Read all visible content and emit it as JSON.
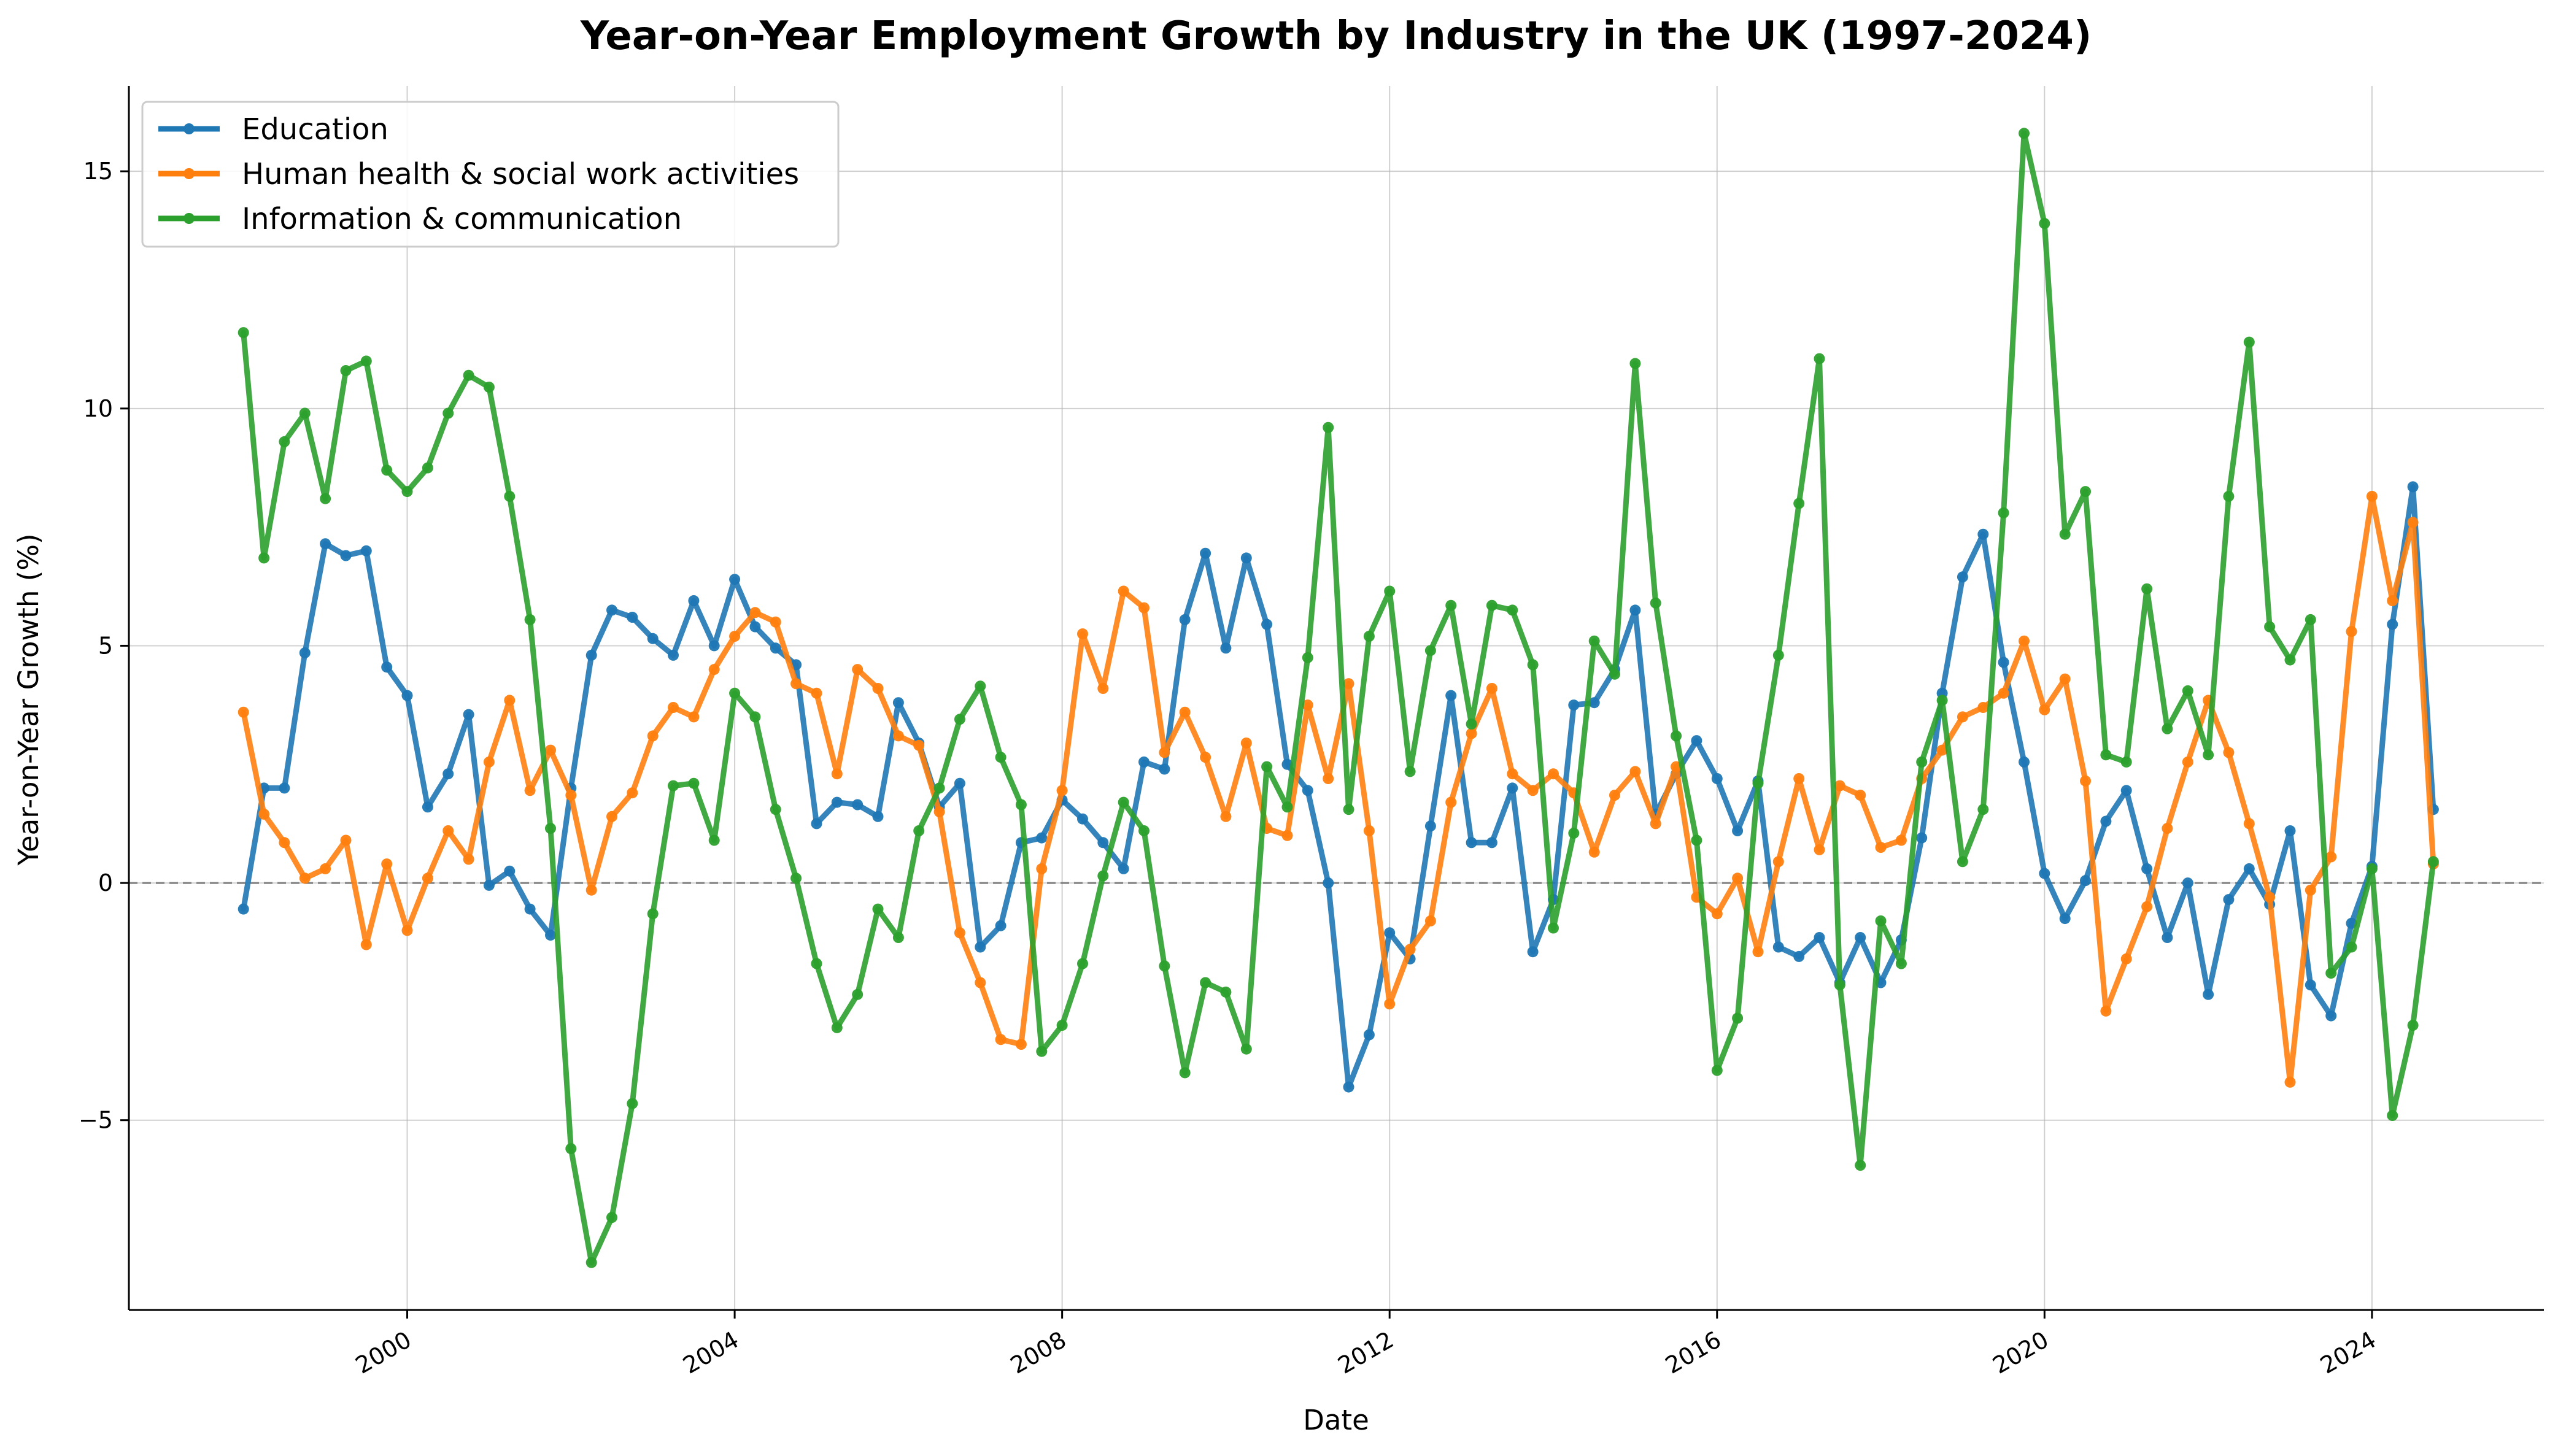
{
  "chart_data": {
    "type": "line",
    "title": "Year-on-Year Employment Growth by Industry in the UK (1997-2024)",
    "xlabel": "Date",
    "ylabel": "Year-on-Year Growth (%)",
    "xlim": [
      1996.6,
      2026.1
    ],
    "ylim": [
      -9,
      16.8
    ],
    "xticks": [
      2000,
      2004,
      2008,
      2012,
      2016,
      2020,
      2024
    ],
    "xtick_labels": [
      "2000",
      "2004",
      "2008",
      "2012",
      "2016",
      "2020",
      "2024"
    ],
    "yticks": [
      -5,
      0,
      5,
      10,
      15
    ],
    "ytick_labels": [
      "−5",
      "0",
      "5",
      "10",
      "15"
    ],
    "grid": true,
    "reference_line": 0,
    "legend_position": "top-left",
    "x": [
      1998.0,
      1998.25,
      1998.5,
      1998.75,
      1999.0,
      1999.25,
      1999.5,
      1999.75,
      2000.0,
      2000.25,
      2000.5,
      2000.75,
      2001.0,
      2001.25,
      2001.5,
      2001.75,
      2002.0,
      2002.25,
      2002.5,
      2002.75,
      2003.0,
      2003.25,
      2003.5,
      2003.75,
      2004.0,
      2004.25,
      2004.5,
      2004.75,
      2005.0,
      2005.25,
      2005.5,
      2005.75,
      2006.0,
      2006.25,
      2006.5,
      2006.75,
      2007.0,
      2007.25,
      2007.5,
      2007.75,
      2008.0,
      2008.25,
      2008.5,
      2008.75,
      2009.0,
      2009.25,
      2009.5,
      2009.75,
      2010.0,
      2010.25,
      2010.5,
      2010.75,
      2011.0,
      2011.25,
      2011.5,
      2011.75,
      2012.0,
      2012.25,
      2012.5,
      2012.75,
      2013.0,
      2013.25,
      2013.5,
      2013.75,
      2014.0,
      2014.25,
      2014.5,
      2014.75,
      2015.0,
      2015.25,
      2015.5,
      2015.75,
      2016.0,
      2016.25,
      2016.5,
      2016.75,
      2017.0,
      2017.25,
      2017.5,
      2017.75,
      2018.0,
      2018.25,
      2018.5,
      2018.75,
      2019.0,
      2019.25,
      2019.5,
      2019.75,
      2020.0,
      2020.25,
      2020.5,
      2020.75,
      2021.0,
      2021.25,
      2021.5,
      2021.75,
      2022.0,
      2022.25,
      2022.5,
      2022.75,
      2023.0,
      2023.25,
      2023.5,
      2023.75,
      2024.0,
      2024.25,
      2024.5,
      2024.75
    ],
    "series": [
      {
        "name": "Education",
        "color": "#1f77b4",
        "values": [
          -0.55,
          2.0,
          2.0,
          4.85,
          7.15,
          6.9,
          7.0,
          4.55,
          3.95,
          1.6,
          2.3,
          3.55,
          -0.05,
          0.25,
          -0.55,
          -1.1,
          2.0,
          4.8,
          5.75,
          5.6,
          5.15,
          4.8,
          5.95,
          5.0,
          6.4,
          5.4,
          4.95,
          4.6,
          1.25,
          1.7,
          1.65,
          1.4,
          3.8,
          2.95,
          1.6,
          2.1,
          -1.35,
          -0.9,
          0.85,
          0.95,
          1.75,
          1.35,
          0.85,
          0.3,
          2.55,
          2.4,
          5.55,
          6.95,
          4.95,
          6.85,
          5.45,
          2.5,
          1.95,
          0.0,
          -4.3,
          -3.2,
          -1.05,
          -1.6,
          1.2,
          3.95,
          0.85,
          0.85,
          2.0,
          -1.45,
          -0.35,
          3.75,
          3.8,
          4.5,
          5.75,
          1.45,
          2.3,
          3.0,
          2.2,
          1.1,
          2.15,
          -1.35,
          -1.55,
          -1.15,
          -2.1,
          -1.15,
          -2.1,
          -1.2,
          0.95,
          4.0,
          6.45,
          7.35,
          4.65,
          2.55,
          0.2,
          -0.75,
          0.05,
          1.3,
          1.95,
          0.3,
          -1.15,
          0.0,
          -2.35,
          -0.35,
          0.3,
          -0.45,
          1.1,
          -2.15,
          -2.8,
          -0.85,
          0.35,
          5.45,
          8.35,
          1.55
        ]
      },
      {
        "name": "Human health & social work activities",
        "color": "#ff7f0e",
        "values": [
          3.6,
          1.45,
          0.85,
          0.1,
          0.3,
          0.9,
          -1.3,
          0.4,
          -1.0,
          0.1,
          1.1,
          0.5,
          2.55,
          3.85,
          1.95,
          2.8,
          1.85,
          -0.15,
          1.4,
          1.9,
          3.1,
          3.7,
          3.5,
          4.5,
          5.2,
          5.7,
          5.5,
          4.2,
          4.0,
          2.3,
          4.5,
          4.1,
          3.1,
          2.9,
          1.5,
          -1.05,
          -2.1,
          -3.3,
          -3.4,
          0.3,
          1.95,
          5.25,
          4.1,
          6.15,
          5.8,
          2.75,
          3.6,
          2.65,
          1.4,
          2.95,
          1.15,
          1.0,
          3.75,
          2.2,
          4.2,
          1.1,
          -2.55,
          -1.4,
          -0.8,
          1.7,
          3.15,
          4.1,
          2.3,
          1.95,
          2.3,
          1.9,
          0.65,
          1.85,
          2.35,
          1.25,
          2.45,
          -0.3,
          -0.65,
          0.1,
          -1.45,
          0.45,
          2.2,
          0.7,
          2.05,
          1.85,
          0.75,
          0.9,
          2.2,
          2.8,
          3.5,
          3.7,
          4.0,
          5.1,
          3.65,
          4.3,
          2.15,
          -2.7,
          -1.6,
          -0.5,
          1.15,
          2.55,
          3.85,
          2.75,
          1.25,
          -0.3,
          -4.2,
          -0.15,
          0.55,
          5.3,
          8.15,
          5.95,
          7.6,
          0.4
        ]
      },
      {
        "name": "Information & communication",
        "color": "#2ca02c",
        "values": [
          11.6,
          6.85,
          9.3,
          9.9,
          8.1,
          10.8,
          11.0,
          8.7,
          8.25,
          8.75,
          9.9,
          10.7,
          10.45,
          8.15,
          5.55,
          1.15,
          -5.6,
          -8.0,
          -7.05,
          -4.65,
          -0.65,
          2.05,
          2.1,
          0.9,
          4.0,
          3.5,
          1.55,
          0.1,
          -1.7,
          -3.05,
          -2.35,
          -0.55,
          -1.15,
          1.1,
          2.0,
          3.45,
          4.15,
          2.65,
          1.65,
          -3.55,
          -3.0,
          -1.7,
          0.15,
          1.7,
          1.1,
          -1.75,
          -4.0,
          -2.1,
          -2.3,
          -3.5,
          2.45,
          1.6,
          4.75,
          9.6,
          1.55,
          5.2,
          6.15,
          2.35,
          4.9,
          5.85,
          3.35,
          5.85,
          5.75,
          4.6,
          -0.95,
          1.05,
          5.1,
          4.4,
          10.95,
          5.9,
          3.1,
          0.9,
          -3.95,
          -2.85,
          2.1,
          4.8,
          8.0,
          11.05,
          -2.15,
          -5.95,
          -0.8,
          -1.7,
          2.55,
          3.85,
          0.45,
          1.55,
          7.8,
          15.8,
          13.9,
          7.35,
          8.25,
          2.7,
          2.55,
          6.2,
          3.25,
          4.05,
          2.7,
          8.15,
          11.4,
          5.4,
          4.7,
          5.55,
          -1.9,
          -1.35,
          0.3,
          -4.9,
          -3.0,
          0.45
        ]
      }
    ]
  }
}
